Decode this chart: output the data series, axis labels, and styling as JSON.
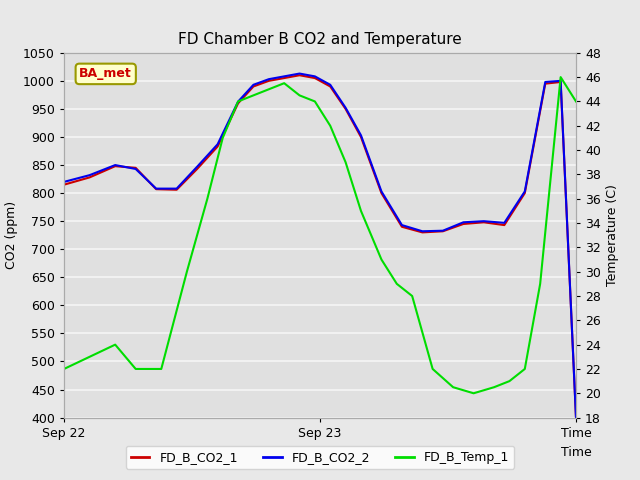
{
  "title": "FD Chamber B CO2 and Temperature",
  "ylabel_left": "CO2 (ppm)",
  "ylabel_right": "Temperature (C)",
  "xlabel": "Time",
  "ylim_left": [
    400,
    1050
  ],
  "ylim_right": [
    18,
    48
  ],
  "bg_color": "#e8e8e8",
  "plot_bg_color": "#e0e0e0",
  "grid_color": "#f5f5f5",
  "annotation_text": "BA_met",
  "annotation_bg": "#ffffcc",
  "annotation_border": "#999900",
  "line_co2_1_color": "#cc0000",
  "line_co2_2_color": "#0000ee",
  "line_temp_color": "#00dd00",
  "legend_labels": [
    "FD_B_CO2_1",
    "FD_B_CO2_2",
    "FD_B_Temp_1"
  ],
  "co2_x": [
    0.0,
    0.05,
    0.1,
    0.14,
    0.18,
    0.22,
    0.26,
    0.3,
    0.34,
    0.37,
    0.4,
    0.43,
    0.46,
    0.49,
    0.52,
    0.55,
    0.58,
    0.62,
    0.66,
    0.7,
    0.74,
    0.78,
    0.82,
    0.86,
    0.9,
    0.94,
    0.97,
    1.0
  ],
  "co2_1_y": [
    815,
    828,
    848,
    845,
    807,
    806,
    843,
    883,
    960,
    990,
    1000,
    1005,
    1010,
    1005,
    990,
    950,
    900,
    800,
    740,
    730,
    732,
    745,
    748,
    743,
    800,
    995,
    998,
    400
  ],
  "co2_2_y": [
    820,
    832,
    850,
    843,
    808,
    808,
    847,
    887,
    963,
    993,
    1003,
    1008,
    1013,
    1008,
    993,
    952,
    903,
    803,
    743,
    732,
    733,
    748,
    750,
    747,
    803,
    998,
    1000,
    400
  ],
  "temp_x": [
    0.0,
    0.05,
    0.1,
    0.14,
    0.18,
    0.19,
    0.24,
    0.28,
    0.31,
    0.34,
    0.37,
    0.4,
    0.43,
    0.46,
    0.49,
    0.52,
    0.55,
    0.58,
    0.62,
    0.65,
    0.68,
    0.72,
    0.76,
    0.8,
    0.84,
    0.87,
    0.9,
    0.93,
    0.97,
    1.0
  ],
  "temp_actual": [
    22,
    23,
    24,
    22,
    22,
    22,
    30,
    36,
    41,
    44,
    44.5,
    45,
    45.5,
    44.5,
    44,
    42,
    39,
    35,
    31,
    29,
    28,
    22,
    20.5,
    20,
    20.5,
    21,
    22,
    29,
    46,
    44
  ]
}
